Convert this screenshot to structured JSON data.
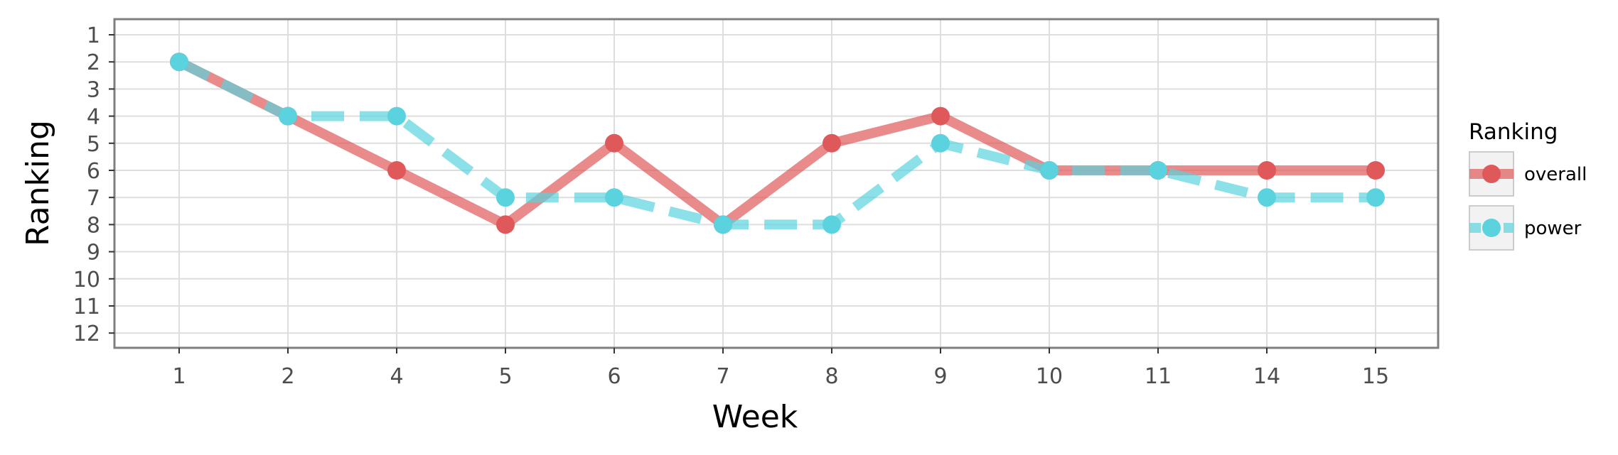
{
  "chart_data": {
    "type": "line",
    "title": "",
    "xlabel": "Week",
    "ylabel": "Ranking",
    "categories": [
      "1",
      "2",
      "4",
      "5",
      "6",
      "7",
      "8",
      "9",
      "10",
      "11",
      "14",
      "15"
    ],
    "y_ticks": [
      "1",
      "2",
      "3",
      "4",
      "5",
      "6",
      "7",
      "8",
      "9",
      "10",
      "11",
      "12"
    ],
    "ylim": [
      1,
      12
    ],
    "y_reversed": true,
    "grid": true,
    "legend": {
      "title": "Ranking",
      "placement": "right"
    },
    "series": [
      {
        "name": "overall",
        "values": [
          2,
          4,
          6,
          8,
          5,
          8,
          5,
          4,
          6,
          6,
          6,
          6
        ],
        "color": "#e0595a",
        "line_style": "solid"
      },
      {
        "name": "power",
        "values": [
          2,
          4,
          4,
          7,
          7,
          8,
          8,
          5,
          6,
          6,
          7,
          7
        ],
        "color": "#5bd3de",
        "line_style": "dashed"
      }
    ]
  }
}
